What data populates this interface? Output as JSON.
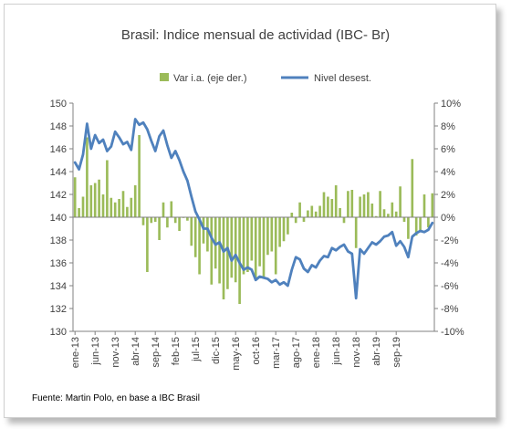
{
  "chart_data": {
    "type": "bar+line",
    "title": "Brasil: Indice mensual de actividad (IBC- Br)",
    "source": "Fuente: Martin Polo, en base a IBC Brasil",
    "x_tick_labels": [
      "ene-13",
      "jun-13",
      "nov-13",
      "abr-14",
      "sep-14",
      "feb-15",
      "jul-15",
      "dic-15",
      "may-16",
      "oct-16",
      "mar-17",
      "ago-17",
      "ene-18",
      "jun-18",
      "nov-18",
      "abr-19",
      "sep-19"
    ],
    "left_axis": {
      "ylim": [
        130,
        150
      ],
      "ticks": [
        130,
        132,
        134,
        136,
        138,
        140,
        142,
        144,
        146,
        148,
        150
      ]
    },
    "right_axis": {
      "ylim": [
        -10,
        10
      ],
      "ticks": [
        "-10%",
        "-8%",
        "-6%",
        "-4%",
        "-2%",
        "0%",
        "2%",
        "4%",
        "6%",
        "8%",
        "10%"
      ]
    },
    "grid": false,
    "legend_position": "top",
    "series": [
      {
        "name": "Var i.a. (eje der.)",
        "type": "bar",
        "axis": "right",
        "color": "#9bbb59",
        "values": [
          3.5,
          0.8,
          1.8,
          7.0,
          2.8,
          3.0,
          3.3,
          2.0,
          5.0,
          1.7,
          1.3,
          1.6,
          2.3,
          0.9,
          1.7,
          2.8,
          7.2,
          -0.7,
          -4.8,
          -0.5,
          -0.4,
          -2.0,
          1.3,
          -0.9,
          1.4,
          -0.5,
          -1.2,
          0.0,
          -0.3,
          -2.5,
          -3.5,
          -5.0,
          -2.3,
          -3.0,
          -5.9,
          -4.5,
          -5.8,
          -7.2,
          -6.3,
          -5.3,
          -5.7,
          -7.6,
          -5.0,
          -4.8,
          -3.8,
          -5.4,
          -4.3,
          -5.2,
          -3.3,
          -3.0,
          -5.0,
          -2.6,
          -2.1,
          -1.5,
          0.4,
          -0.5,
          1.3,
          -0.4,
          0.6,
          1.0,
          0.5,
          1.0,
          2.2,
          1.8,
          1.6,
          2.8,
          0.8,
          -0.5,
          2.3,
          2.4,
          -2.7,
          1.8,
          2.0,
          2.2,
          1.2,
          0.1,
          2.3,
          0.7,
          0.3,
          1.3,
          0.5,
          2.7,
          -0.4,
          -1.9,
          5.1,
          -1.6,
          -1.2,
          2.0,
          -0.9,
          2.1
        ]
      },
      {
        "name": "Nivel desest.",
        "type": "line",
        "axis": "left",
        "color": "#4f81bd",
        "values": [
          144.8,
          144.2,
          145.5,
          148.2,
          146.0,
          147.2,
          146.5,
          146.8,
          145.8,
          146.2,
          147.5,
          147.0,
          146.4,
          146.6,
          145.9,
          148.6,
          148.1,
          148.3,
          147.7,
          146.7,
          145.8,
          147.1,
          147.6,
          146.3,
          145.2,
          145.8,
          145.0,
          144.0,
          143.2,
          141.8,
          140.5,
          139.8,
          139.0,
          139.0,
          138.2,
          137.6,
          137.8,
          137.0,
          137.3,
          136.2,
          136.7,
          136.0,
          135.4,
          135.6,
          135.4,
          134.5,
          134.8,
          134.7,
          134.6,
          134.3,
          134.5,
          134.1,
          134.3,
          134.0,
          135.4,
          136.5,
          136.3,
          135.5,
          135.2,
          135.8,
          135.6,
          136.2,
          136.6,
          136.5,
          137.3,
          137.1,
          137.4,
          137.6,
          137.0,
          136.8,
          132.9,
          137.2,
          136.8,
          137.3,
          137.8,
          137.6,
          137.9,
          138.3,
          138.4,
          138.7,
          137.5,
          137.9,
          137.4,
          136.5,
          138.3,
          138.6,
          138.8,
          138.7,
          138.9,
          139.5
        ]
      }
    ]
  }
}
